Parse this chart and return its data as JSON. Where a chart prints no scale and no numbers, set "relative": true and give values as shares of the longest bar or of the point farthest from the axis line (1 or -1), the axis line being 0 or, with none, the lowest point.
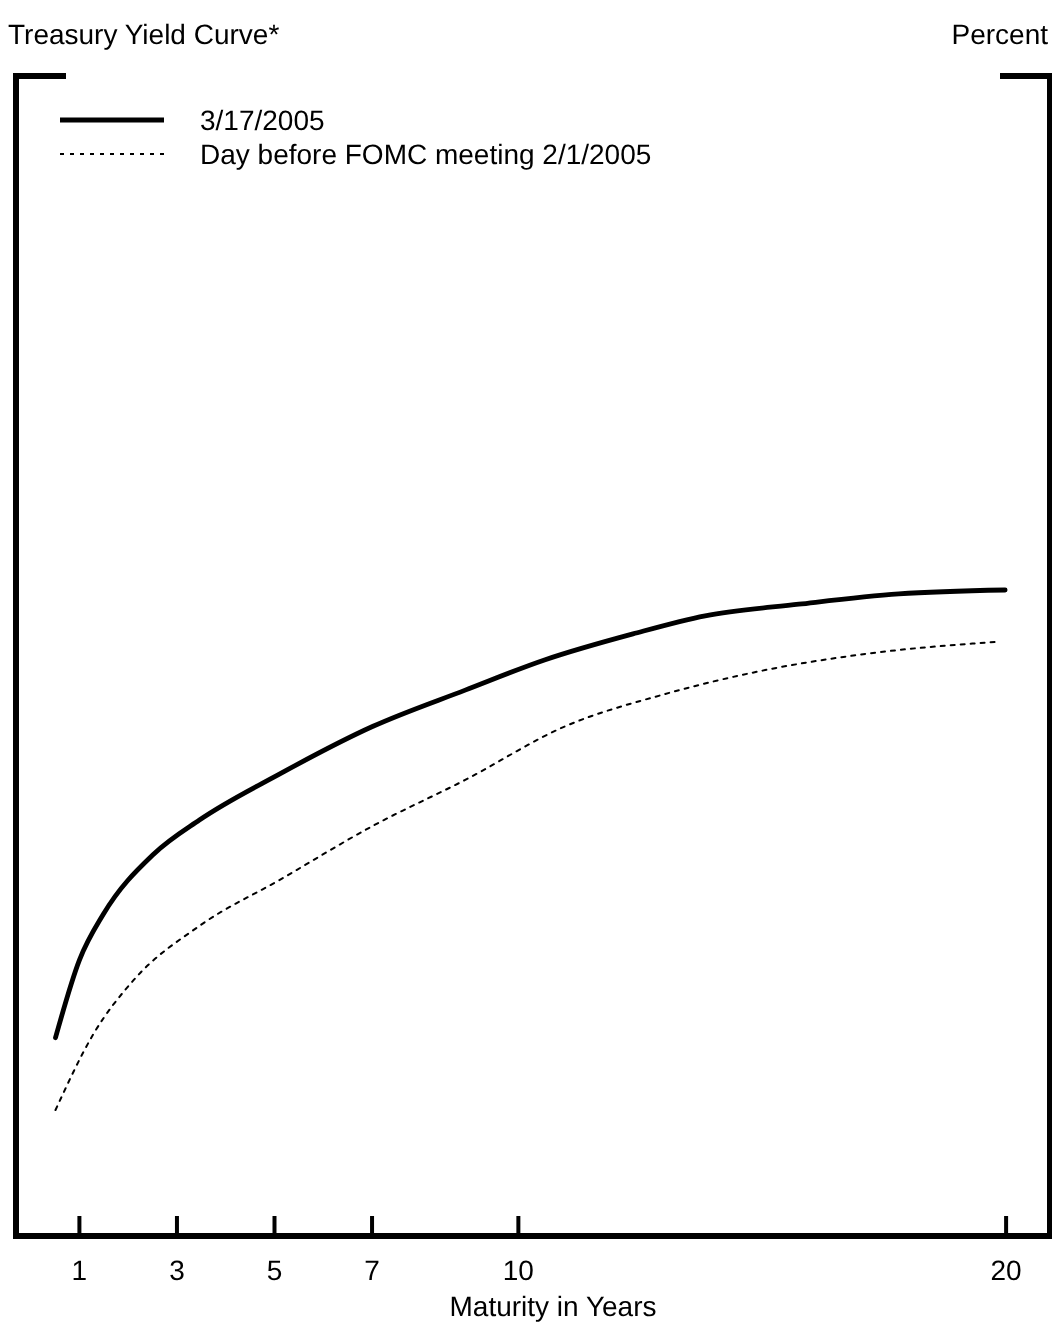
{
  "chart_data": {
    "type": "line",
    "title": "Treasury Yield Curve*",
    "annotations": [
      "Percent"
    ],
    "xlabel": "Maturity in Years",
    "relative": true,
    "xlim": [
      -0.3,
      20.9
    ],
    "xticks": [
      1,
      3,
      5,
      7,
      10,
      20
    ],
    "legend": "top left",
    "series": [
      {
        "name": "3/17/2005",
        "color": "#000000",
        "line_style": "solid",
        "x": [
          0.51,
          1.0,
          1.49,
          2.52,
          3.46,
          5.1,
          7.02,
          8.91,
          10.55,
          12.35,
          13.83,
          15.75,
          17.8,
          19.98
        ],
        "values": [
          0.307,
          0.427,
          0.498,
          0.591,
          0.644,
          0.715,
          0.789,
          0.845,
          0.892,
          0.932,
          0.96,
          0.978,
          0.994,
          1.0
        ]
      },
      {
        "name": "Day before FOMC meeting 2/1/2005",
        "color": "#000000",
        "line_style": "dotted",
        "x": [
          0.51,
          1.29,
          2.11,
          3.46,
          5.1,
          7.02,
          8.91,
          10.96,
          13.01,
          15.06,
          17.11,
          19.85
        ],
        "values": [
          0.195,
          0.313,
          0.396,
          0.48,
          0.551,
          0.635,
          0.706,
          0.789,
          0.839,
          0.876,
          0.901,
          0.92
        ]
      }
    ]
  }
}
